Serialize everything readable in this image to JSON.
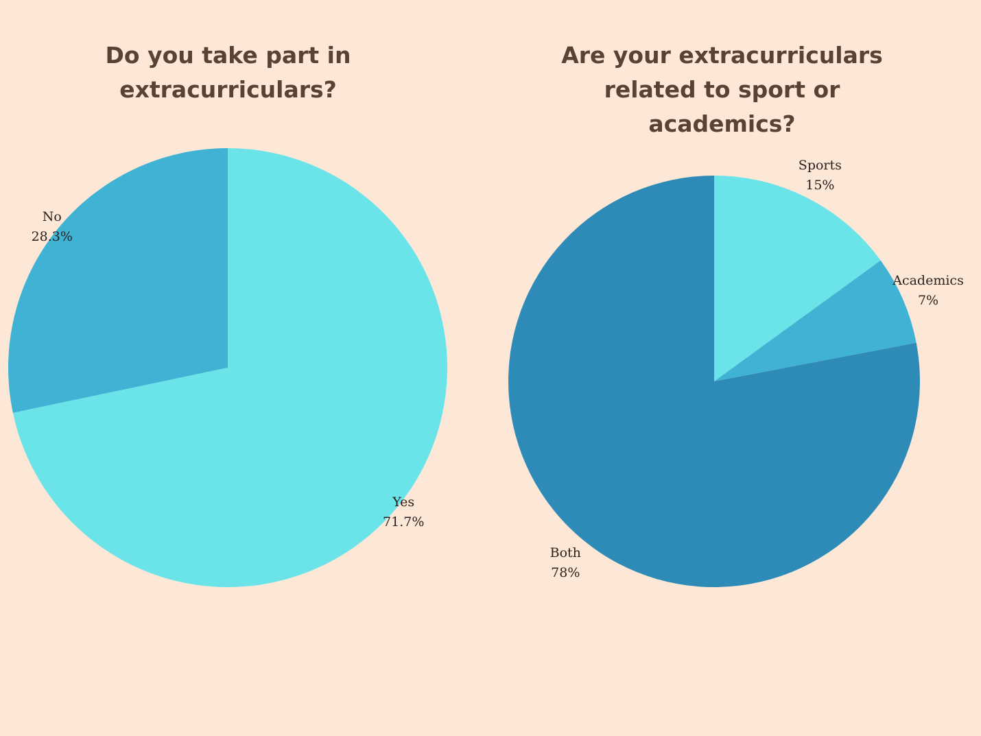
{
  "colors": {
    "background": "#fde8d7",
    "title": "#5a4136",
    "label": "#2a211d"
  },
  "chart_data": [
    {
      "type": "pie",
      "title": "Do you take part in extracurriculars?",
      "slices": [
        {
          "label": "Yes",
          "value": 71.7,
          "display": "71.7%",
          "color": "#6ae4e8"
        },
        {
          "label": "No",
          "value": 28.3,
          "display": "28.3%",
          "color": "#40b3d4"
        }
      ],
      "start": "12 o'clock",
      "direction": "clockwise",
      "legend": "none (labels outside slices)"
    },
    {
      "type": "pie",
      "title": "Are your extracurriculars related to sport or academics?",
      "slices": [
        {
          "label": "Sports",
          "value": 15,
          "display": "15%",
          "color": "#6ae4e8"
        },
        {
          "label": "Academics",
          "value": 7,
          "display": "7%",
          "color": "#40b3d4"
        },
        {
          "label": "Both",
          "value": 78,
          "display": "78%",
          "color": "#2e8bb8"
        }
      ],
      "start": "12 o'clock",
      "direction": "clockwise",
      "legend": "none (labels outside slices)"
    }
  ]
}
